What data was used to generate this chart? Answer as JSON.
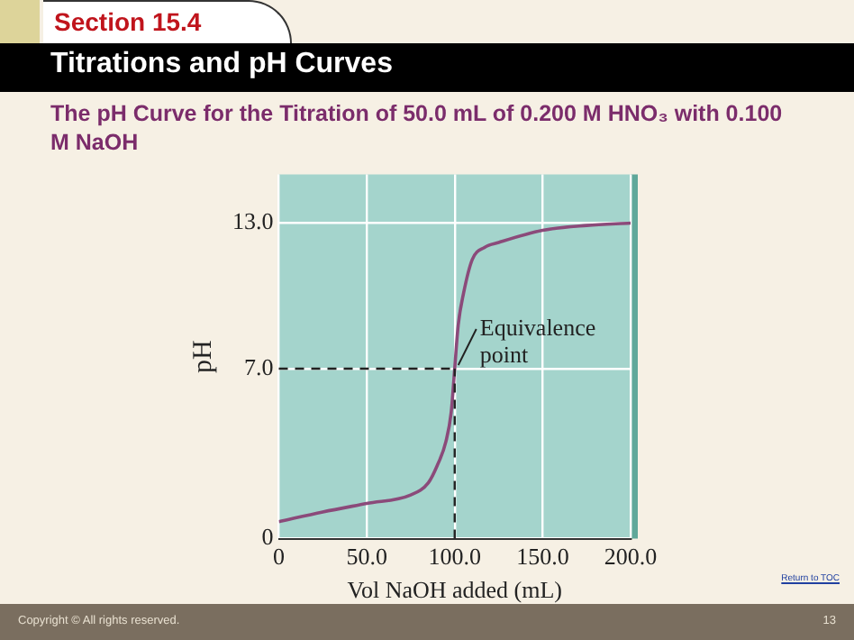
{
  "chart_data": {
    "type": "line",
    "title": "Titrations and pH Curves",
    "subtitle": "The pH Curve for the Titration of 50.0 mL of 0.200 M HNO₃ with 0.100 M NaOH",
    "xlabel": "Vol NaOH added (mL)",
    "ylabel": "pH",
    "x": [
      0,
      25,
      50,
      75,
      85,
      90,
      95,
      98,
      100,
      102,
      105,
      110,
      117,
      125,
      150,
      175,
      200
    ],
    "series": [
      {
        "color": "#8b4a7a",
        "values": [
          0.7,
          1.1,
          1.45,
          1.8,
          2.3,
          3.0,
          4.0,
          5.2,
          7.0,
          8.8,
          10.1,
          11.5,
          12.0,
          12.2,
          12.7,
          12.9,
          13.0
        ]
      }
    ],
    "xlim": [
      0,
      200
    ],
    "ylim": [
      0,
      15
    ],
    "xticks": [
      0,
      {
        "value": 50,
        "label": "50.0"
      },
      {
        "value": 100,
        "label": "100.0"
      },
      {
        "value": 150,
        "label": "150.0"
      },
      {
        "value": 200,
        "label": "200.0"
      }
    ],
    "yticks": [
      0,
      {
        "value": 7,
        "label": "7.0"
      },
      {
        "value": 13,
        "label": "13.0"
      }
    ],
    "grid": true,
    "legend": false,
    "marker": "none",
    "line_style": "solid",
    "ref_lines": [
      {
        "axis": "x",
        "value": 100,
        "line_style": "dashed",
        "color": "#222222"
      },
      {
        "axis": "y",
        "value": 7,
        "line_style": "dashed",
        "color": "#222222"
      }
    ],
    "annotations": [
      {
        "text": "Equivalence point",
        "x": 100,
        "y": 7
      },
      "Section 15.4",
      "Return to TOC",
      "Copyright © All rights reserved.",
      "13"
    ]
  }
}
